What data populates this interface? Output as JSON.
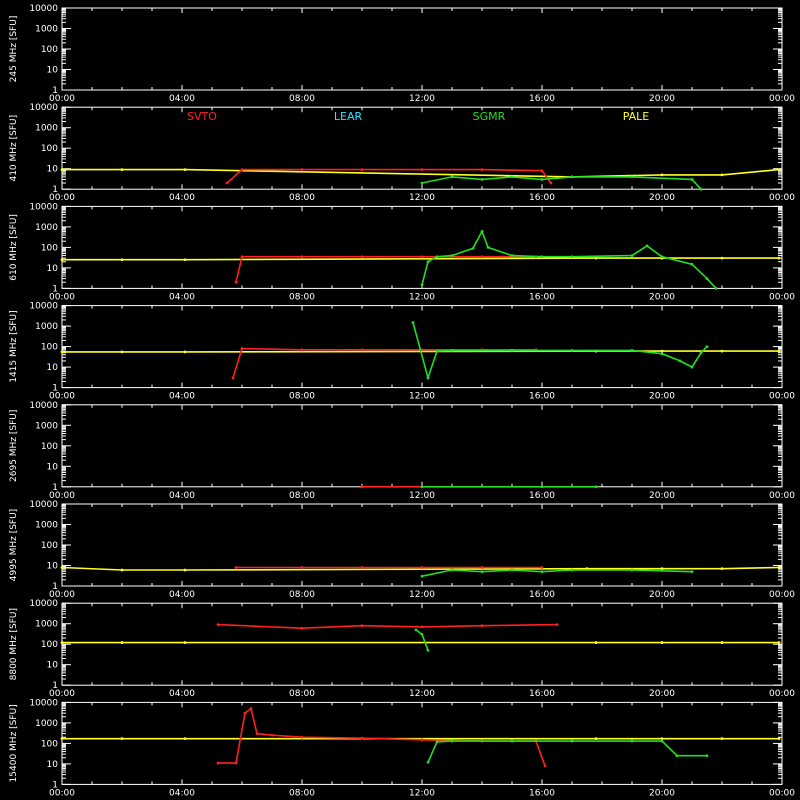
{
  "figure": {
    "x_ticks": [
      "00:00",
      "04:00",
      "08:00",
      "12:00",
      "16:00",
      "20:00",
      "00:00"
    ],
    "y_ticks": [
      "10000",
      "1000",
      "100",
      "10",
      "1"
    ],
    "legend": [
      {
        "name": "SVTO",
        "color": "#ff2020"
      },
      {
        "name": "LEAR",
        "color": "#30e0ff"
      },
      {
        "name": "SGMR",
        "color": "#20e020"
      },
      {
        "name": "PALE",
        "color": "#ffff20"
      }
    ]
  },
  "chart_data": [
    {
      "type": "scatter",
      "ylabel": "245 MHz [SFU]",
      "yscale": "log",
      "ylim": [
        1,
        10000
      ],
      "xlim": [
        0,
        24
      ],
      "series": []
    },
    {
      "type": "scatter",
      "ylabel": "410 MHz [SFU]",
      "yscale": "log",
      "ylim": [
        1,
        10000
      ],
      "xlim": [
        0,
        24
      ],
      "series": [
        {
          "name": "PALE",
          "points": [
            [
              0,
              9
            ],
            [
              2,
              9
            ],
            [
              4.1,
              9
            ],
            [
              17,
              4
            ],
            [
              20,
              5
            ],
            [
              22,
              5
            ],
            [
              23.9,
              9
            ]
          ]
        },
        {
          "name": "SVTO",
          "points": [
            [
              5.5,
              2
            ],
            [
              6,
              9
            ],
            [
              8,
              9
            ],
            [
              10,
              9
            ],
            [
              12,
              9
            ],
            [
              14,
              9
            ],
            [
              16,
              8
            ],
            [
              16.3,
              2
            ]
          ]
        },
        {
          "name": "SGMR",
          "points": [
            [
              12,
              2
            ],
            [
              13,
              4
            ],
            [
              14,
              3
            ],
            [
              15,
              4
            ],
            [
              16,
              3
            ],
            [
              17,
              4
            ],
            [
              19,
              4
            ],
            [
              21,
              3
            ],
            [
              21.3,
              1
            ]
          ]
        }
      ]
    },
    {
      "type": "scatter",
      "ylabel": "610 MHz [SFU]",
      "yscale": "log",
      "ylim": [
        1,
        10000
      ],
      "xlim": [
        0,
        24
      ],
      "series": [
        {
          "name": "PALE",
          "points": [
            [
              0,
              25
            ],
            [
              2,
              25
            ],
            [
              4.1,
              25
            ],
            [
              17.8,
              30
            ],
            [
              20,
              30
            ],
            [
              22,
              30
            ],
            [
              23.9,
              30
            ]
          ]
        },
        {
          "name": "SVTO",
          "points": [
            [
              5.8,
              2
            ],
            [
              6,
              35
            ],
            [
              8,
              35
            ],
            [
              10,
              35
            ],
            [
              12,
              35
            ],
            [
              14,
              35
            ],
            [
              15.8,
              35
            ]
          ]
        },
        {
          "name": "SGMR",
          "points": [
            [
              12,
              1.5
            ],
            [
              12.2,
              20
            ],
            [
              12.5,
              35
            ],
            [
              13,
              40
            ],
            [
              13.7,
              90
            ],
            [
              14,
              600
            ],
            [
              14.2,
              100
            ],
            [
              15,
              40
            ],
            [
              16,
              35
            ],
            [
              17,
              35
            ],
            [
              19,
              40
            ],
            [
              19.5,
              120
            ],
            [
              20,
              35
            ],
            [
              21,
              15
            ],
            [
              21.5,
              3
            ],
            [
              21.8,
              1
            ]
          ]
        }
      ]
    },
    {
      "type": "scatter",
      "ylabel": "1415 MHz [SFU]",
      "yscale": "log",
      "ylim": [
        1,
        10000
      ],
      "xlim": [
        0,
        24
      ],
      "series": [
        {
          "name": "PALE",
          "points": [
            [
              0,
              55
            ],
            [
              2,
              55
            ],
            [
              4.1,
              55
            ],
            [
              17.8,
              60
            ],
            [
              20,
              60
            ],
            [
              22,
              60
            ],
            [
              23.9,
              60
            ]
          ]
        },
        {
          "name": "SVTO",
          "points": [
            [
              5.7,
              3
            ],
            [
              6,
              80
            ],
            [
              8,
              70
            ],
            [
              10,
              70
            ],
            [
              12,
              70
            ],
            [
              14,
              70
            ],
            [
              15.8,
              70
            ]
          ]
        },
        {
          "name": "SGMR",
          "points": [
            [
              11.7,
              1500
            ],
            [
              12.2,
              3
            ],
            [
              12.5,
              60
            ],
            [
              13,
              65
            ],
            [
              15,
              65
            ],
            [
              17,
              65
            ],
            [
              19,
              65
            ],
            [
              20,
              45
            ],
            [
              20.6,
              20
            ],
            [
              21,
              10
            ],
            [
              21.3,
              50
            ],
            [
              21.5,
              100
            ]
          ]
        }
      ]
    },
    {
      "type": "scatter",
      "ylabel": "2695 MHz [SFU]",
      "yscale": "log",
      "ylim": [
        1,
        10000
      ],
      "xlim": [
        0,
        24
      ],
      "series": [
        {
          "name": "SVTO",
          "points": [
            [
              10,
              1
            ],
            [
              12,
              1
            ]
          ]
        },
        {
          "name": "SGMR",
          "points": [
            [
              12,
              1
            ],
            [
              16,
              1
            ],
            [
              17.8,
              1
            ]
          ]
        }
      ]
    },
    {
      "type": "scatter",
      "ylabel": "4995 MHz [SFU]",
      "yscale": "log",
      "ylim": [
        1,
        10000
      ],
      "xlim": [
        0,
        24
      ],
      "series": [
        {
          "name": "PALE",
          "points": [
            [
              0,
              8
            ],
            [
              2,
              6
            ],
            [
              4.1,
              6
            ],
            [
              17.5,
              7
            ],
            [
              20,
              7
            ],
            [
              22,
              7
            ],
            [
              23.9,
              8
            ]
          ]
        },
        {
          "name": "SVTO",
          "points": [
            [
              5.8,
              8
            ],
            [
              8,
              8
            ],
            [
              10,
              8
            ],
            [
              12,
              8
            ],
            [
              14,
              8
            ],
            [
              16,
              8
            ]
          ]
        },
        {
          "name": "SGMR",
          "points": [
            [
              12,
              3
            ],
            [
              13,
              6
            ],
            [
              14,
              5
            ],
            [
              15,
              6
            ],
            [
              16,
              5
            ],
            [
              17,
              6
            ],
            [
              19,
              6
            ],
            [
              21,
              5
            ]
          ]
        }
      ]
    },
    {
      "type": "scatter",
      "ylabel": "8800 MHz [SFU]",
      "yscale": "log",
      "ylim": [
        1,
        10000
      ],
      "xlim": [
        0,
        24
      ],
      "series": [
        {
          "name": "PALE",
          "points": [
            [
              0,
              120
            ],
            [
              2,
              120
            ],
            [
              4.1,
              120
            ],
            [
              17.8,
              120
            ],
            [
              20,
              120
            ],
            [
              22,
              120
            ],
            [
              23.9,
              120
            ]
          ]
        },
        {
          "name": "SVTO",
          "points": [
            [
              5.2,
              900
            ],
            [
              8,
              600
            ],
            [
              10,
              800
            ],
            [
              12,
              700
            ],
            [
              14,
              800
            ],
            [
              16.5,
              900
            ]
          ]
        },
        {
          "name": "SGMR",
          "points": [
            [
              11.8,
              500
            ],
            [
              12,
              300
            ],
            [
              12.2,
              50
            ]
          ]
        }
      ]
    },
    {
      "type": "scatter",
      "ylabel": "15400 MHz [SFU]",
      "yscale": "log",
      "ylim": [
        1,
        10000
      ],
      "xlim": [
        0,
        24
      ],
      "series": [
        {
          "name": "PALE",
          "points": [
            [
              0,
              170
            ],
            [
              2,
              170
            ],
            [
              4.1,
              170
            ],
            [
              17.8,
              170
            ],
            [
              20,
              170
            ],
            [
              22,
              170
            ],
            [
              23.9,
              170
            ]
          ]
        },
        {
          "name": "SVTO",
          "points": [
            [
              5.2,
              11
            ],
            [
              5.8,
              11
            ],
            [
              6.1,
              3000
            ],
            [
              6.3,
              5000
            ],
            [
              6.5,
              300
            ],
            [
              7,
              250
            ],
            [
              8,
              200
            ],
            [
              10,
              180
            ],
            [
              12,
              150
            ],
            [
              14,
              130
            ],
            [
              15.8,
              130
            ],
            [
              16.1,
              8
            ]
          ]
        },
        {
          "name": "SGMR",
          "points": [
            [
              12.2,
              12
            ],
            [
              12.5,
              120
            ],
            [
              13,
              130
            ],
            [
              15,
              130
            ],
            [
              17,
              130
            ],
            [
              19,
              130
            ],
            [
              20,
              130
            ],
            [
              20.5,
              25
            ],
            [
              21.5,
              25
            ]
          ]
        }
      ]
    }
  ]
}
